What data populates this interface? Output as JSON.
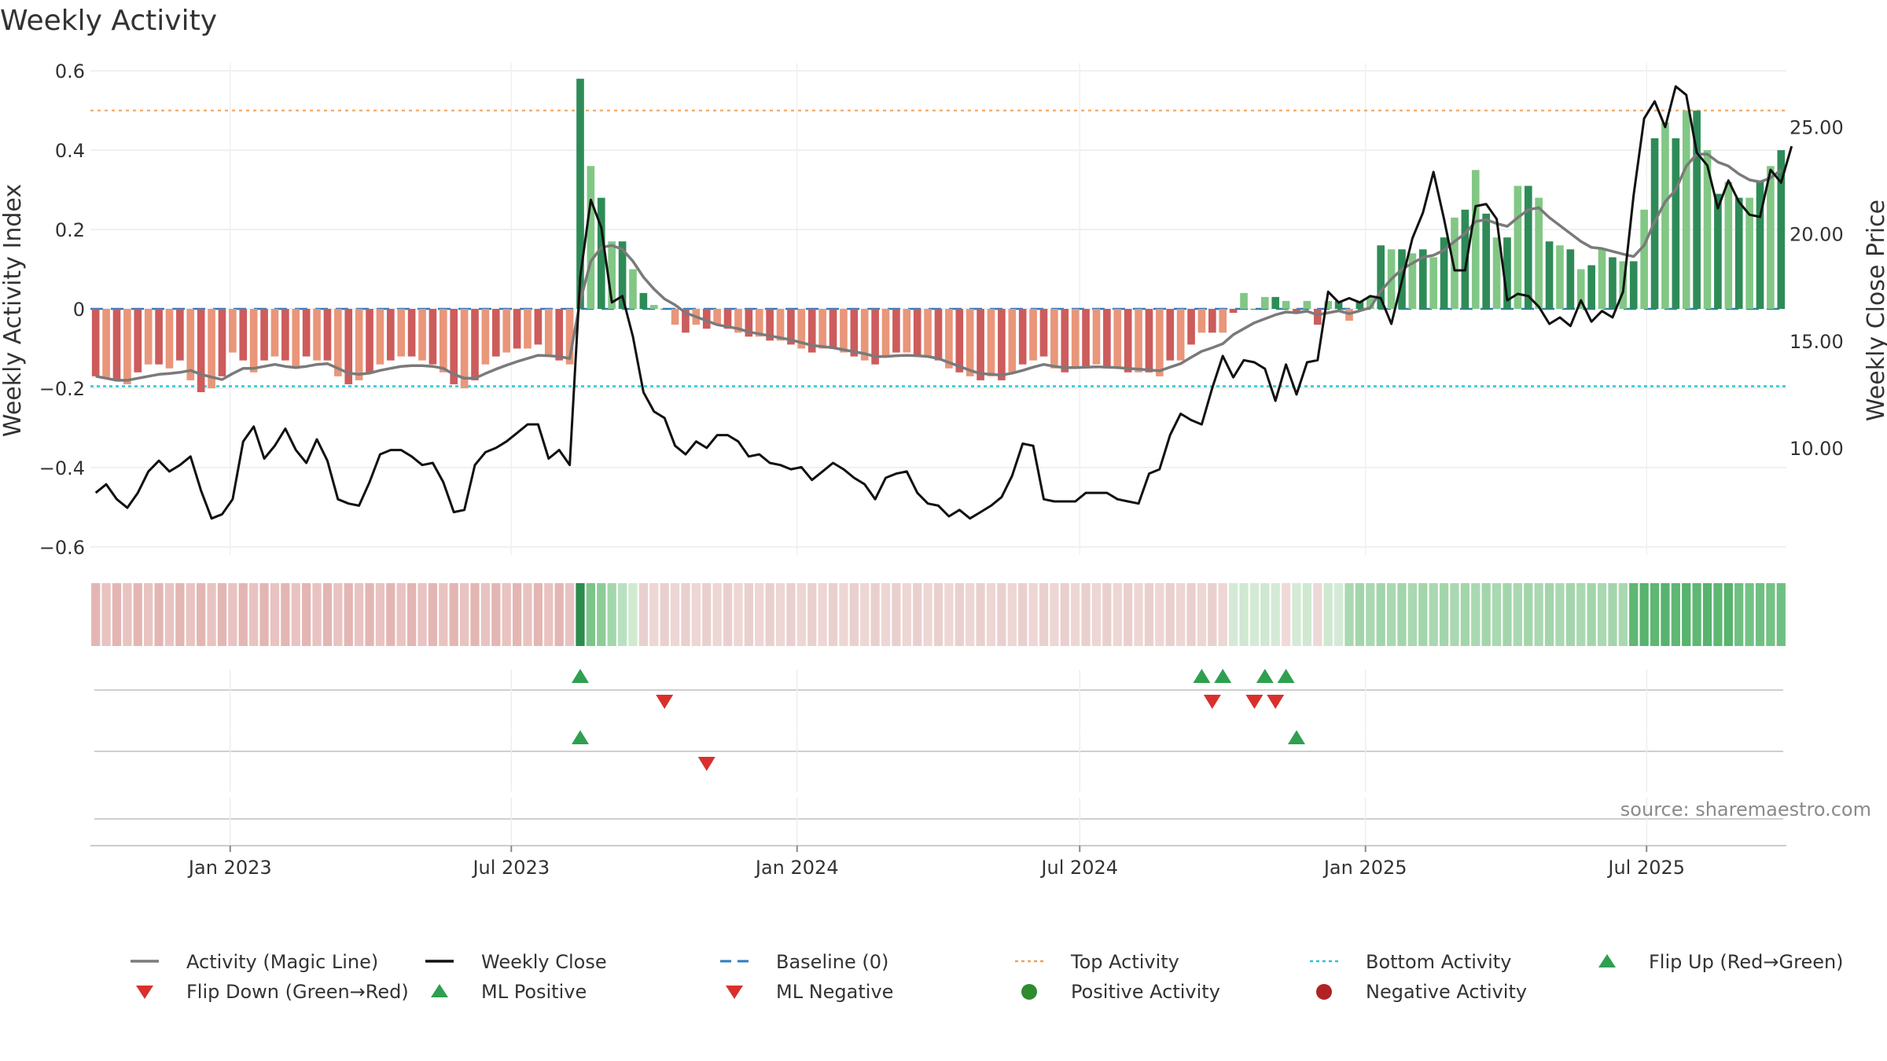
{
  "chart_data": {
    "type": "bar",
    "title": "Weekly Activity",
    "ylabel": "Weekly Activity Index",
    "y2label": "Weekly Close Price",
    "source": "source: sharemaestro.com",
    "ylim": [
      -0.62,
      0.62
    ],
    "y2lim": [
      5.0,
      28.0
    ],
    "yticks": [
      -0.6,
      -0.4,
      -0.2,
      0,
      0.2,
      0.4,
      0.6
    ],
    "ytick_labels": [
      "−0.6",
      "−0.4",
      "−0.2",
      "0",
      "0.2",
      "0.4",
      "0.6"
    ],
    "y2ticks": [
      10,
      15,
      20,
      25
    ],
    "y2tick_labels": [
      "10.00",
      "15.00",
      "20.00",
      "25.00"
    ],
    "x_start": "2022-10-03",
    "x_end": "2025-09-29",
    "xticks": [
      "2023-01-01",
      "2023-07-01",
      "2024-01-01",
      "2024-07-01",
      "2025-01-01",
      "2025-07-01"
    ],
    "xtick_labels": [
      "Jan 2023",
      "Jul 2023",
      "Jan 2024",
      "Jul 2024",
      "Jan 2025",
      "Jul 2025"
    ],
    "top_activity": 0.5,
    "bottom_activity": -0.195,
    "baseline": 0,
    "activity": [
      -0.17,
      -0.175,
      -0.18,
      -0.19,
      -0.16,
      -0.14,
      -0.14,
      -0.15,
      -0.13,
      -0.18,
      -0.21,
      -0.2,
      -0.17,
      -0.11,
      -0.13,
      -0.16,
      -0.13,
      -0.12,
      -0.13,
      -0.15,
      -0.12,
      -0.13,
      -0.13,
      -0.17,
      -0.19,
      -0.18,
      -0.16,
      -0.14,
      -0.13,
      -0.12,
      -0.12,
      -0.13,
      -0.14,
      -0.16,
      -0.19,
      -0.2,
      -0.18,
      -0.14,
      -0.12,
      -0.11,
      -0.1,
      -0.1,
      -0.09,
      -0.12,
      -0.13,
      -0.14,
      0.58,
      0.36,
      0.28,
      0.17,
      0.17,
      0.1,
      0.04,
      0.01,
      0,
      -0.04,
      -0.06,
      -0.04,
      -0.05,
      -0.04,
      -0.05,
      -0.06,
      -0.07,
      -0.07,
      -0.08,
      -0.08,
      -0.09,
      -0.1,
      -0.11,
      -0.1,
      -0.1,
      -0.11,
      -0.12,
      -0.13,
      -0.14,
      -0.12,
      -0.11,
      -0.11,
      -0.12,
      -0.12,
      -0.13,
      -0.15,
      -0.16,
      -0.17,
      -0.18,
      -0.17,
      -0.18,
      -0.16,
      -0.14,
      -0.13,
      -0.12,
      -0.15,
      -0.16,
      -0.15,
      -0.15,
      -0.14,
      -0.15,
      -0.15,
      -0.16,
      -0.16,
      -0.16,
      -0.17,
      -0.13,
      -0.13,
      -0.09,
      -0.06,
      -0.06,
      -0.06,
      -0.01,
      0.04,
      0,
      0.03,
      0.03,
      0.02,
      -0.01,
      0.02,
      -0.04,
      0.02,
      0.02,
      -0.03,
      0.02,
      0.03,
      0.16,
      0.15,
      0.15,
      0.14,
      0.15,
      0.13,
      0.18,
      0.23,
      0.25,
      0.35,
      0.24,
      0.18,
      0.18,
      0.31,
      0.31,
      0.28,
      0.17,
      0.16,
      0.15,
      0.1,
      0.11,
      0.15,
      0.13,
      0.12,
      0.12,
      0.25,
      0.43,
      0.47,
      0.43,
      0.5,
      0.5,
      0.4,
      0.29,
      0.32,
      0.28,
      0.28,
      0.32,
      0.36,
      0.4
    ],
    "magic_line": [
      -0.17,
      -0.175,
      -0.18,
      -0.18,
      -0.175,
      -0.17,
      -0.165,
      -0.163,
      -0.16,
      -0.155,
      -0.165,
      -0.172,
      -0.178,
      -0.163,
      -0.15,
      -0.15,
      -0.145,
      -0.14,
      -0.145,
      -0.148,
      -0.145,
      -0.14,
      -0.138,
      -0.15,
      -0.162,
      -0.165,
      -0.162,
      -0.155,
      -0.15,
      -0.145,
      -0.143,
      -0.143,
      -0.145,
      -0.15,
      -0.165,
      -0.175,
      -0.175,
      -0.163,
      -0.152,
      -0.142,
      -0.133,
      -0.125,
      -0.117,
      -0.118,
      -0.12,
      -0.125,
      0.02,
      0.12,
      0.155,
      0.16,
      0.15,
      0.12,
      0.08,
      0.05,
      0.025,
      0.01,
      -0.01,
      -0.02,
      -0.03,
      -0.04,
      -0.045,
      -0.05,
      -0.058,
      -0.063,
      -0.068,
      -0.073,
      -0.078,
      -0.085,
      -0.092,
      -0.095,
      -0.098,
      -0.103,
      -0.108,
      -0.113,
      -0.12,
      -0.12,
      -0.118,
      -0.117,
      -0.118,
      -0.12,
      -0.125,
      -0.135,
      -0.145,
      -0.155,
      -0.163,
      -0.165,
      -0.167,
      -0.162,
      -0.155,
      -0.147,
      -0.14,
      -0.145,
      -0.148,
      -0.148,
      -0.147,
      -0.146,
      -0.147,
      -0.148,
      -0.15,
      -0.152,
      -0.154,
      -0.156,
      -0.147,
      -0.138,
      -0.122,
      -0.107,
      -0.098,
      -0.088,
      -0.065,
      -0.05,
      -0.035,
      -0.025,
      -0.015,
      -0.008,
      -0.01,
      -0.006,
      -0.015,
      -0.01,
      -0.005,
      -0.012,
      -0.005,
      0.003,
      0.045,
      0.075,
      0.1,
      0.115,
      0.13,
      0.135,
      0.148,
      0.17,
      0.19,
      0.22,
      0.225,
      0.215,
      0.208,
      0.23,
      0.25,
      0.255,
      0.23,
      0.21,
      0.19,
      0.17,
      0.155,
      0.152,
      0.145,
      0.138,
      0.132,
      0.16,
      0.22,
      0.27,
      0.3,
      0.36,
      0.39,
      0.39,
      0.37,
      0.36,
      0.34,
      0.325,
      0.32,
      0.33,
      0.35
    ],
    "weekly_close": [
      7.9,
      8.3,
      7.6,
      7.2,
      7.9,
      8.9,
      9.4,
      8.9,
      9.2,
      9.6,
      8.0,
      6.7,
      6.9,
      7.6,
      10.3,
      11.0,
      9.5,
      10.1,
      10.9,
      9.9,
      9.3,
      10.4,
      9.4,
      7.6,
      7.4,
      7.3,
      8.4,
      9.7,
      9.9,
      9.9,
      9.6,
      9.2,
      9.3,
      8.4,
      7.0,
      7.1,
      9.2,
      9.8,
      10.0,
      10.3,
      10.7,
      11.1,
      11.1,
      9.5,
      9.9,
      9.2,
      18.0,
      21.6,
      20.3,
      16.8,
      17.1,
      15.2,
      12.6,
      11.7,
      11.4,
      10.1,
      9.7,
      10.3,
      10.0,
      10.6,
      10.6,
      10.3,
      9.6,
      9.7,
      9.3,
      9.2,
      9.0,
      9.1,
      8.5,
      8.9,
      9.3,
      9.0,
      8.6,
      8.3,
      7.6,
      8.6,
      8.8,
      8.9,
      7.9,
      7.4,
      7.3,
      6.8,
      7.1,
      6.7,
      7.0,
      7.3,
      7.7,
      8.7,
      10.2,
      10.1,
      7.6,
      7.5,
      7.5,
      7.5,
      7.9,
      7.9,
      7.9,
      7.6,
      7.5,
      7.4,
      8.8,
      9.0,
      10.6,
      11.6,
      11.3,
      11.1,
      12.8,
      14.3,
      13.3,
      14.1,
      14.0,
      13.7,
      12.2,
      13.9,
      12.5,
      14.0,
      14.1,
      17.3,
      16.8,
      17.0,
      16.8,
      17.1,
      17.0,
      15.8,
      17.8,
      19.8,
      21.0,
      22.9,
      20.7,
      18.3,
      18.3,
      21.3,
      21.4,
      20.7,
      16.9,
      17.2,
      17.1,
      16.6,
      15.8,
      16.1,
      15.7,
      16.9,
      15.9,
      16.4,
      16.1,
      17.3,
      21.8,
      25.4,
      26.2,
      25.0,
      26.9,
      26.5,
      23.8,
      23.2,
      21.2,
      22.5,
      21.5,
      20.9,
      20.8,
      23.0,
      22.4,
      24.1
    ],
    "strip_colors": [
      "#e3b6b3",
      "#e8c3c1",
      "#e3b6b3",
      "#e8c3c1",
      "#e3b6b3",
      "#e8c3c1",
      "#e3b6b3",
      "#e8c3c1",
      "#e3b6b3",
      "#e8c3c1",
      "#e3b6b3",
      "#e8c3c1",
      "#e3b6b3",
      "#e8c3c1",
      "#e3b6b3",
      "#e8c3c1",
      "#e3b6b3",
      "#e8c3c1",
      "#e3b6b3",
      "#e8c3c1",
      "#e3b6b3",
      "#e8c3c1",
      "#e3b6b3",
      "#e8c3c1",
      "#e3b6b3",
      "#e8c3c1",
      "#e3b6b3",
      "#e8c3c1",
      "#e3b6b3",
      "#e8c3c1",
      "#e3b6b3",
      "#e8c3c1",
      "#e3b6b3",
      "#e8c3c1",
      "#e3b6b3",
      "#e8c3c1",
      "#e3b6b3",
      "#e8c3c1",
      "#e3b6b3",
      "#e8c3c1",
      "#e3b6b3",
      "#e8c3c1",
      "#e3b6b3",
      "#e8c3c1",
      "#e3b6b3",
      "#e8c3c1",
      "#2e8b4e",
      "#7cc48a",
      "#8dcc97",
      "#a3d7ab",
      "#b9e1bf",
      "#cfeacf",
      "#e9d0ce",
      "#edd6d4",
      "#e9d0ce",
      "#edd6d4",
      "#e9d0ce",
      "#edd6d4",
      "#e9d0ce",
      "#edd6d4",
      "#e9d0ce",
      "#edd6d4",
      "#e9d0ce",
      "#edd6d4",
      "#e9d0ce",
      "#edd6d4",
      "#e9d0ce",
      "#edd6d4",
      "#e9d0ce",
      "#edd6d4",
      "#e9d0ce",
      "#edd6d4",
      "#e9d0ce",
      "#edd6d4",
      "#e9d0ce",
      "#edd6d4",
      "#e9d0ce",
      "#edd6d4",
      "#e9d0ce",
      "#edd6d4",
      "#e9d0ce",
      "#edd6d4",
      "#e9d0ce",
      "#edd6d4",
      "#e9d0ce",
      "#edd6d4",
      "#e9d0ce",
      "#edd6d4",
      "#e9d0ce",
      "#edd6d4",
      "#e9d0ce",
      "#edd6d4",
      "#e9d0ce",
      "#edd6d4",
      "#e9d0ce",
      "#edd6d4",
      "#e9d0ce",
      "#edd6d4",
      "#e9d0ce",
      "#edd6d4",
      "#e9d0ce",
      "#edd6d4",
      "#e9d0ce",
      "#edd6d4",
      "#e9d0ce",
      "#edd6d4",
      "#e9d0ce",
      "#edd6d4",
      "#d4ead6",
      "#cfe8d0",
      "#d4ead6",
      "#cfe8d0",
      "#d4ead6",
      "#efdad8",
      "#d4ead6",
      "#cfe8d0",
      "#ecd8d6",
      "#cfe8d0",
      "#d4ead6",
      "#a9d8b1",
      "#a3d5ab",
      "#a9d8b1",
      "#a3d5ab",
      "#a9d8b1",
      "#a3d5ab",
      "#a9d8b1",
      "#a3d5ab",
      "#a9d8b1",
      "#a3d5ab",
      "#a9d8b1",
      "#a3d5ab",
      "#a9d8b1",
      "#a3d5ab",
      "#a9d8b1",
      "#a3d5ab",
      "#a9d8b1",
      "#a3d5ab",
      "#a9d8b1",
      "#a3d5ab",
      "#a9d8b1",
      "#a3d5ab",
      "#a9d8b1",
      "#a3d5ab",
      "#a9d8b1",
      "#a3d5ab",
      "#a9d8b1",
      "#5fb774",
      "#57b36d",
      "#5fb774",
      "#57b36d",
      "#5fb774",
      "#57b36d",
      "#5fb774",
      "#57b36d",
      "#5fb774",
      "#57b36d",
      "#6fbf82",
      "#74c286",
      "#6fbf82",
      "#74c286",
      "#6fbf82"
    ],
    "flip_up": [
      46,
      105,
      107,
      111,
      113
    ],
    "flip_down": [
      54,
      106,
      110,
      112
    ],
    "ml_positive": [
      46,
      114
    ],
    "ml_negative": [
      58
    ],
    "legend": [
      {
        "label": "Activity (Magic Line)",
        "kind": "line",
        "color": "#7a7a7a"
      },
      {
        "label": "Weekly Close",
        "kind": "line",
        "color": "#111111"
      },
      {
        "label": "Baseline (0)",
        "kind": "dashed",
        "color": "#2e7bbf"
      },
      {
        "label": "Top Activity",
        "kind": "dotted",
        "color": "#f0a05a"
      },
      {
        "label": "Bottom Activity",
        "kind": "dotted",
        "color": "#2ec4d6"
      },
      {
        "label": "Flip Up (Red→Green)",
        "kind": "up",
        "color": "#2ea04f"
      },
      {
        "label": "Flip Down (Green→Red)",
        "kind": "down",
        "color": "#d9302c"
      },
      {
        "label": "ML Positive",
        "kind": "up",
        "color": "#2ea04f"
      },
      {
        "label": "ML Negative",
        "kind": "down",
        "color": "#d9302c"
      },
      {
        "label": "Positive Activity",
        "kind": "dot",
        "color": "#2e8b2e"
      },
      {
        "label": "Negative Activity",
        "kind": "dot",
        "color": "#b22222"
      }
    ],
    "colors": {
      "pos_dark": "#2e8b57",
      "pos_light": "#82c785",
      "neg_dark": "#cd5c5c",
      "neg_light": "#e9967a",
      "close": "#111111",
      "magic": "#7a7a7a"
    }
  }
}
